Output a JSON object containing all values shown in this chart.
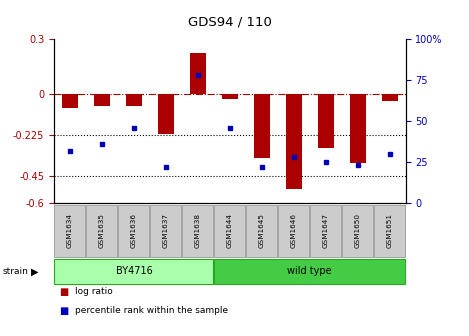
{
  "title": "GDS94 / 110",
  "samples": [
    "GSM1634",
    "GSM1635",
    "GSM1636",
    "GSM1637",
    "GSM1638",
    "GSM1644",
    "GSM1645",
    "GSM1646",
    "GSM1647",
    "GSM1650",
    "GSM1651"
  ],
  "log_ratio": [
    -0.08,
    -0.07,
    -0.07,
    -0.22,
    0.22,
    -0.03,
    -0.35,
    -0.52,
    -0.3,
    -0.38,
    -0.04
  ],
  "percentile_rank": [
    32,
    36,
    46,
    22,
    78,
    46,
    22,
    28,
    25,
    23,
    30
  ],
  "groups": [
    {
      "label": "BY4716",
      "start": 0,
      "end": 5,
      "color": "#AAFFAA"
    },
    {
      "label": "wild type",
      "start": 5,
      "end": 11,
      "color": "#44CC44"
    }
  ],
  "ylim_left": [
    -0.6,
    0.3
  ],
  "ylim_right": [
    0,
    100
  ],
  "yticks_left": [
    0.3,
    0.0,
    -0.225,
    -0.45,
    -0.6
  ],
  "ytick_labels_left": [
    "0.3",
    "0",
    "-0.225",
    "-0.45",
    "-0.6"
  ],
  "yticks_right": [
    100,
    75,
    50,
    25,
    0
  ],
  "ytick_labels_right": [
    "100%",
    "75",
    "50",
    "25",
    "0"
  ],
  "hlines": [
    -0.225,
    -0.45
  ],
  "zero_line": 0.0,
  "bar_color": "#AA0000",
  "dot_color": "#0000BB",
  "bar_width": 0.5,
  "legend_items": [
    "log ratio",
    "percentile rank within the sample"
  ],
  "strain_label": "strain"
}
